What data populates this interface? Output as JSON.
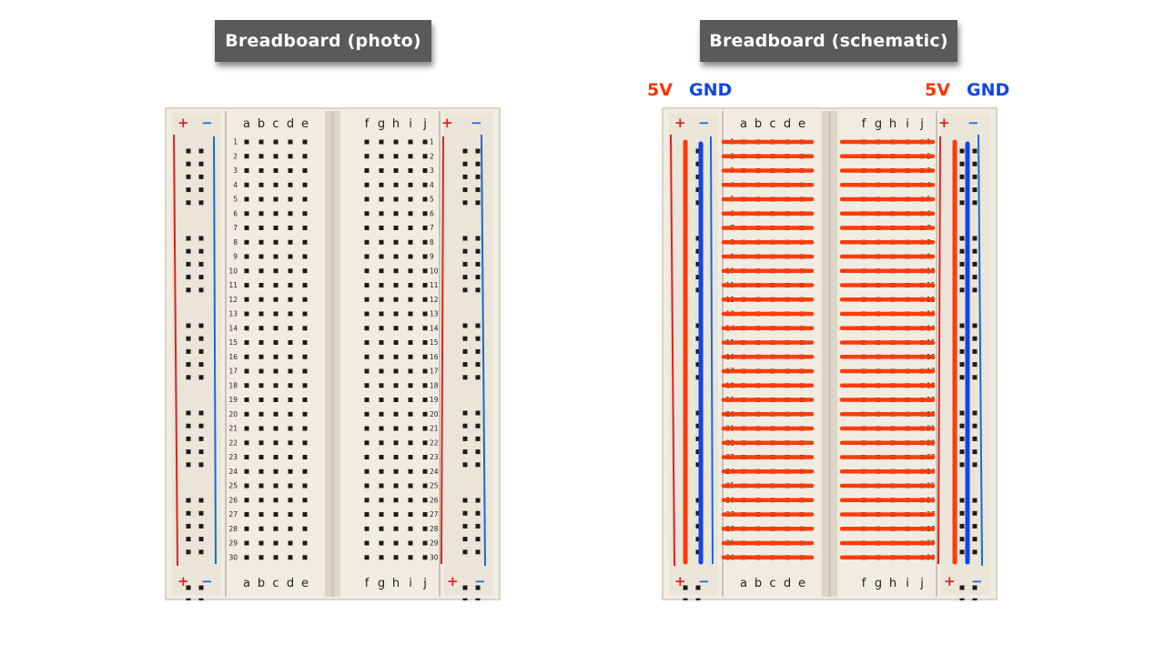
{
  "titles": {
    "photo": "Breadboard (photo)",
    "schematic": "Breadboard (schematic)"
  },
  "rail_labels": {
    "power": "5V",
    "ground": "GND"
  },
  "symbols": {
    "plus": "+",
    "minus": "−"
  },
  "columns": {
    "left_group": [
      "a",
      "b",
      "c",
      "d",
      "e"
    ],
    "right_group": [
      "f",
      "g",
      "h",
      "i",
      "j"
    ]
  },
  "rows": [
    "1",
    "2",
    "3",
    "4",
    "5",
    "6",
    "7",
    "8",
    "9",
    "10",
    "11",
    "12",
    "13",
    "14",
    "15",
    "16",
    "17",
    "18",
    "19",
    "20",
    "21",
    "22",
    "23",
    "24",
    "25",
    "26",
    "27",
    "28",
    "29",
    "30"
  ],
  "colors": {
    "board": "#f1ece2",
    "hole": "#1c1b19",
    "power_line": "#e0221f",
    "ground_line": "#1a6ad6",
    "connection_red": "#ff3b0a",
    "connection_blue": "#1144ee",
    "title_bg": "#5a5a5a"
  }
}
